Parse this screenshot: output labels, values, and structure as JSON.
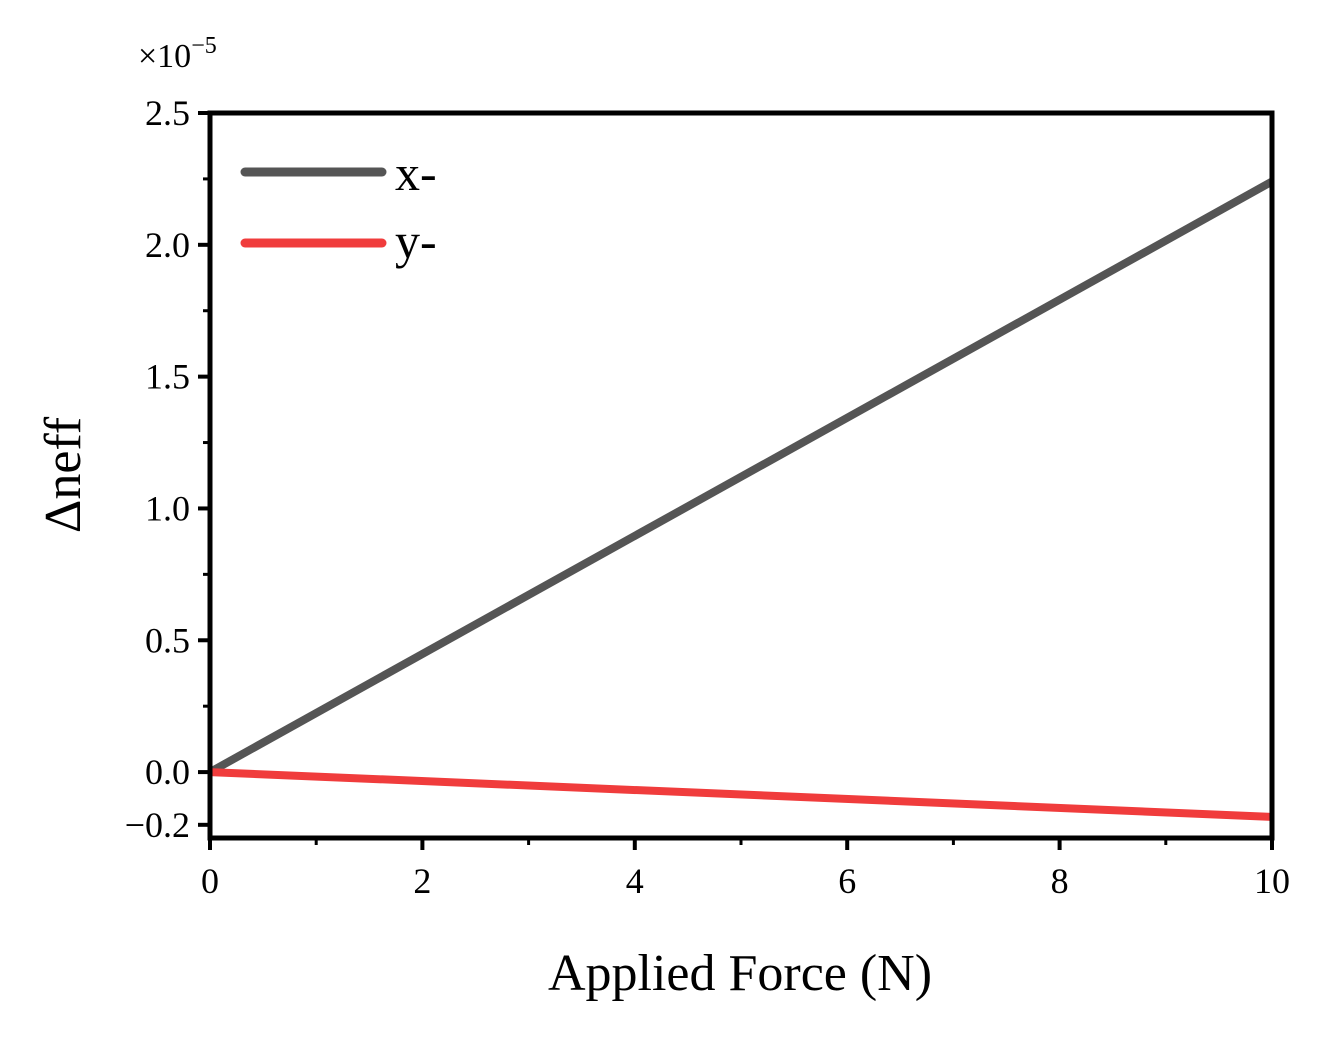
{
  "chart_data": {
    "type": "line",
    "xlabel": "Applied Force (N)",
    "ylabel": "Δneff",
    "xlim": [
      0,
      10
    ],
    "ylim": [
      -0.25,
      2.5
    ],
    "x_ticks": [
      0,
      2,
      4,
      6,
      8,
      10
    ],
    "x_tick_labels": [
      "0",
      "2",
      "4",
      "6",
      "8",
      "10"
    ],
    "y_ticks": [
      -0.2,
      0.0,
      0.5,
      1.0,
      1.5,
      2.0,
      2.5
    ],
    "y_tick_labels": [
      "−0.2",
      "0.0",
      "0.5",
      "1.0",
      "1.5",
      "2.0",
      "2.5"
    ],
    "y_multiplier": {
      "base": "×10",
      "exponent": "−5"
    },
    "grid": false,
    "legend_position": "top-left",
    "series": [
      {
        "name": "x-",
        "color": "#555555",
        "x": [
          0,
          10
        ],
        "y": [
          0.0,
          2.24
        ]
      },
      {
        "name": "y-",
        "color": "#f03c3c",
        "x": [
          0,
          10
        ],
        "y": [
          0.0,
          -0.17
        ]
      }
    ]
  }
}
